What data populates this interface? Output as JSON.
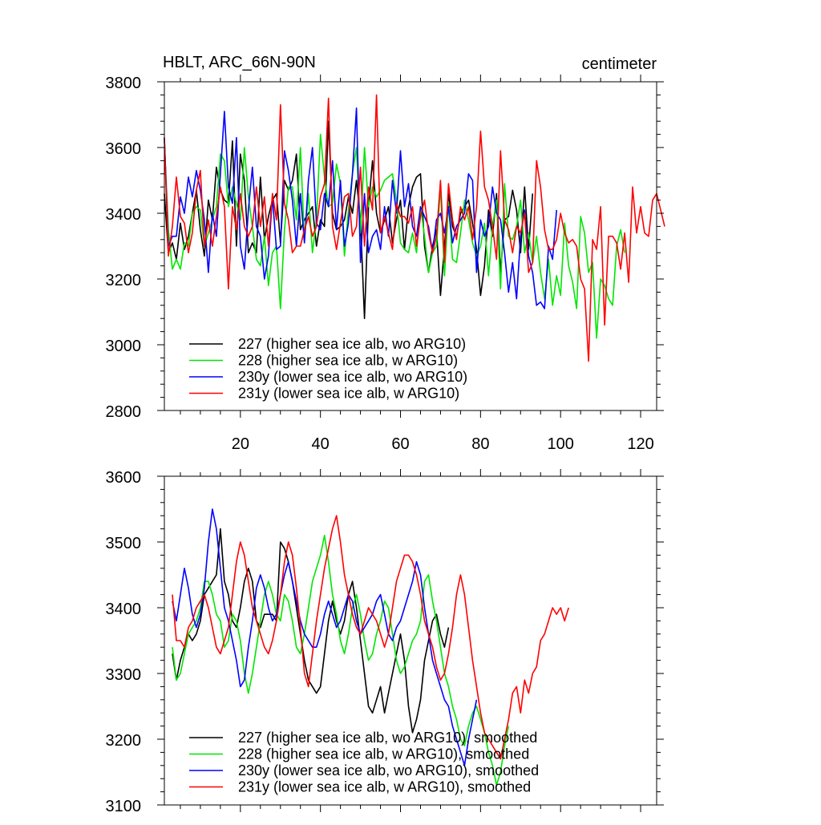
{
  "chart_data": [
    {
      "type": "line",
      "title_left": "HBLT, ARC_66N-90N",
      "title_right": "centimeter",
      "xlim": [
        1,
        124
      ],
      "ylim": [
        2800,
        3800
      ],
      "xticks": [
        20,
        40,
        60,
        80,
        100,
        120
      ],
      "yticks": [
        2800,
        3000,
        3200,
        3400,
        3600,
        3800
      ],
      "xtick_labels": [
        "20",
        "40",
        "60",
        "80",
        "100",
        "120"
      ],
      "ytick_labels": [
        "2800",
        "3000",
        "3200",
        "3400",
        "3600",
        "3800"
      ],
      "legend": [
        "227 (higher sea ice alb, wo ARG10)",
        "228 (higher sea ice alb, w ARG10)",
        "230y (lower sea ice alb, wo ARG10)",
        "231y (lower sea ice alb, w ARG10)"
      ],
      "series": [
        {
          "name": "227 (higher sea ice alb, wo ARG10)",
          "color": "#000000",
          "x_start": 1,
          "values": [
            3460,
            3280,
            3310,
            3260,
            3370,
            3290,
            3330,
            3400,
            3470,
            3350,
            3270,
            3440,
            3380,
            3540,
            3470,
            3440,
            3430,
            3620,
            3300,
            3580,
            3500,
            3280,
            3310,
            3280,
            3510,
            3320,
            3390,
            3440,
            3460,
            3310,
            3500,
            3470,
            3500,
            3580,
            3350,
            3380,
            3400,
            3420,
            3300,
            3380,
            3360,
            3680,
            3400,
            3350,
            3360,
            3380,
            3450,
            3400,
            3500,
            3380,
            3080,
            3420,
            3560,
            3400,
            3340,
            3380,
            3420,
            3310,
            3380,
            3440,
            3290,
            3420,
            3480,
            3510,
            3520,
            3300,
            3220,
            3300,
            3350,
            3150,
            3300,
            3460,
            3360,
            3330,
            3400,
            3420,
            3440,
            3370,
            3290,
            3150,
            3240,
            3410,
            3330,
            3460,
            3220,
            3380,
            3390,
            3470,
            3410,
            3280,
            3480,
            3290,
            3460
          ]
        },
        {
          "name": "228 (higher sea ice alb, w ARG10)",
          "color": "#00e600",
          "x_start": 1,
          "values": [
            3620,
            3350,
            3230,
            3260,
            3230,
            3310,
            3300,
            3400,
            3420,
            3410,
            3300,
            3340,
            3380,
            3420,
            3580,
            3560,
            3420,
            3480,
            3430,
            3380,
            3600,
            3450,
            3360,
            3260,
            3240,
            3330,
            3180,
            3280,
            3300,
            3110,
            3350,
            3480,
            3480,
            3380,
            3600,
            3320,
            3460,
            3280,
            3380,
            3640,
            3510,
            3420,
            3430,
            3550,
            3490,
            3270,
            3410,
            3520,
            3600,
            3340,
            3600,
            3420,
            3480,
            3450,
            3470,
            3500,
            3510,
            3520,
            3440,
            3310,
            3290,
            3280,
            3340,
            3280,
            3420,
            3330,
            3220,
            3280,
            3300,
            3480,
            3210,
            3430,
            3260,
            3250,
            3340,
            3440,
            3380,
            3310,
            3270,
            3300,
            3370,
            3210,
            3360,
            3440,
            3170,
            3490,
            3330,
            3320,
            3360,
            3440,
            3280,
            3340,
            3250,
            3330,
            3220,
            3140,
            3260,
            3120,
            3210,
            3150,
            3370,
            3240,
            3190,
            3110,
            3390,
            3340,
            3220,
            3250,
            3020,
            3200,
            3180,
            3140,
            3120,
            3300,
            3350,
            3280
          ]
        },
        {
          "name": "230y (lower sea ice alb, wo ARG10)",
          "color": "#0000ff",
          "x_start": 1,
          "values": [
            3630,
            3300,
            3330,
            3330,
            3450,
            3400,
            3510,
            3450,
            3530,
            3470,
            3380,
            3220,
            3400,
            3330,
            3520,
            3710,
            3480,
            3430,
            3630,
            3300,
            3230,
            3410,
            3540,
            3360,
            3330,
            3200,
            3270,
            3450,
            3290,
            3300,
            3590,
            3530,
            3440,
            3300,
            3460,
            3310,
            3500,
            3600,
            3370,
            3350,
            3460,
            3420,
            3560,
            3350,
            3500,
            3300,
            3370,
            3520,
            3720,
            3250,
            3460,
            3280,
            3330,
            3350,
            3290,
            3420,
            3330,
            3500,
            3400,
            3590,
            3420,
            3490,
            3360,
            3330,
            3420,
            3390,
            3360,
            3280,
            3380,
            3400,
            3340,
            3420,
            3310,
            3360,
            3380,
            3400,
            3520,
            3500,
            3220,
            3380,
            3330,
            3360,
            3480,
            3400,
            3380,
            3280,
            3160,
            3250,
            3140,
            3330,
            3410,
            3270,
            3220,
            3120,
            3130,
            3110,
            3300,
            3260,
            3410
          ]
        },
        {
          "name": "231y (lower sea ice alb, w ARG10)",
          "color": "#ff0000",
          "x_start": 1,
          "values": [
            3630,
            3270,
            3360,
            3510,
            3390,
            3370,
            3280,
            3340,
            3470,
            3530,
            3300,
            3380,
            3300,
            3390,
            3480,
            3420,
            3170,
            3420,
            3350,
            3460,
            3360,
            3330,
            3360,
            3480,
            3360,
            3450,
            3300,
            3460,
            3380,
            3730,
            3430,
            3380,
            3280,
            3300,
            3300,
            3350,
            3390,
            3330,
            3360,
            3450,
            3490,
            3750,
            3360,
            3290,
            3370,
            3450,
            3460,
            3330,
            3360,
            3540,
            3300,
            3480,
            3410,
            3760,
            3340,
            3390,
            3340,
            3290,
            3430,
            3390,
            3390,
            3370,
            3420,
            3300,
            3390,
            3440,
            3340,
            3280,
            3330,
            3500,
            3250,
            3490,
            3380,
            3320,
            3420,
            3380,
            3420,
            3320,
            3420,
            3650,
            3480,
            3440,
            3360,
            3260,
            3590,
            3380,
            3350,
            3280,
            3360,
            3340,
            3400,
            3220,
            3250,
            3560,
            3480,
            3350,
            3290,
            3290,
            3320,
            3400,
            3340,
            3310,
            3320,
            3300,
            3200,
            3170,
            2950,
            3320,
            3290,
            3420,
            3060,
            3330,
            3330,
            3310,
            3230,
            3340,
            3190,
            3480,
            3340,
            3420,
            3340,
            3330,
            3440,
            3460,
            3410,
            3360
          ]
        }
      ]
    },
    {
      "type": "line",
      "xlim": [
        1,
        124
      ],
      "ylim": [
        3100,
        3600
      ],
      "xticks": [
        20,
        40,
        60,
        80,
        100,
        120
      ],
      "yticks": [
        3100,
        3200,
        3300,
        3400,
        3500,
        3600
      ],
      "ytick_labels": [
        "3100",
        "3200",
        "3300",
        "3400",
        "3500",
        "3600"
      ],
      "legend": [
        "227 (higher sea ice alb, wo ARG10), smoothed",
        "228 (higher sea ice alb, w ARG10), smoothed",
        "230y (lower sea ice alb, wo ARG10), smoothed",
        "231y (lower sea ice alb, w ARG10), smoothed"
      ],
      "series": [
        {
          "name": "227 (higher sea ice alb, wo ARG10), smoothed",
          "color": "#000000",
          "x_start": 3,
          "values": [
            3330,
            3290,
            3320,
            3340,
            3360,
            3350,
            3360,
            3380,
            3420,
            3430,
            3440,
            3450,
            3520,
            3440,
            3420,
            3380,
            3370,
            3400,
            3440,
            3460,
            3440,
            3380,
            3370,
            3390,
            3390,
            3390,
            3380,
            3500,
            3490,
            3470,
            3440,
            3400,
            3360,
            3320,
            3290,
            3280,
            3270,
            3280,
            3330,
            3380,
            3410,
            3380,
            3360,
            3380,
            3420,
            3440,
            3400,
            3350,
            3300,
            3250,
            3240,
            3260,
            3280,
            3240,
            3270,
            3300,
            3330,
            3360,
            3320,
            3250,
            3210,
            3230,
            3260,
            3320,
            3350,
            3380,
            3390,
            3360,
            3340,
            3370
          ]
        },
        {
          "name": "228 (higher sea ice alb, w ARG10), smoothed",
          "color": "#00e600",
          "x_start": 3,
          "values": [
            3340,
            3290,
            3300,
            3330,
            3360,
            3370,
            3380,
            3400,
            3440,
            3440,
            3420,
            3390,
            3380,
            3340,
            3350,
            3390,
            3380,
            3350,
            3300,
            3270,
            3300,
            3340,
            3380,
            3420,
            3440,
            3420,
            3390,
            3380,
            3420,
            3410,
            3380,
            3340,
            3330,
            3360,
            3400,
            3440,
            3460,
            3480,
            3510,
            3470,
            3420,
            3390,
            3350,
            3330,
            3360,
            3400,
            3420,
            3390,
            3350,
            3320,
            3330,
            3360,
            3380,
            3410,
            3400,
            3360,
            3320,
            3300,
            3310,
            3330,
            3350,
            3360,
            3380,
            3440,
            3450,
            3410,
            3380,
            3340,
            3300,
            3280,
            3250,
            3230,
            3200,
            3190,
            3220,
            3240,
            3250,
            3230,
            3210,
            3180,
            3160,
            3130,
            3150,
            3190,
            3220
          ]
        },
        {
          "name": "230y (lower sea ice alb, wo ARG10), smoothed",
          "color": "#0000ff",
          "x_start": 3,
          "values": [
            3410,
            3380,
            3420,
            3460,
            3430,
            3390,
            3370,
            3390,
            3430,
            3500,
            3550,
            3520,
            3460,
            3400,
            3380,
            3350,
            3320,
            3280,
            3290,
            3340,
            3380,
            3430,
            3450,
            3430,
            3400,
            3380,
            3390,
            3420,
            3450,
            3470,
            3440,
            3410,
            3380,
            3360,
            3350,
            3340,
            3340,
            3360,
            3390,
            3410,
            3390,
            3370,
            3380,
            3400,
            3420,
            3410,
            3380,
            3360,
            3370,
            3380,
            3390,
            3410,
            3420,
            3390,
            3360,
            3350,
            3370,
            3380,
            3400,
            3420,
            3440,
            3470,
            3450,
            3400,
            3360,
            3320,
            3300,
            3280,
            3260,
            3250,
            3220,
            3200,
            3180,
            3160,
            3200,
            3230,
            3260
          ]
        },
        {
          "name": "231y (lower sea ice alb, w ARG10), smoothed",
          "color": "#ff0000",
          "x_start": 3,
          "values": [
            3420,
            3350,
            3350,
            3340,
            3370,
            3380,
            3400,
            3410,
            3420,
            3400,
            3370,
            3340,
            3330,
            3350,
            3370,
            3420,
            3470,
            3500,
            3480,
            3440,
            3400,
            3380,
            3360,
            3340,
            3330,
            3350,
            3380,
            3420,
            3470,
            3500,
            3480,
            3430,
            3370,
            3300,
            3280,
            3330,
            3380,
            3420,
            3460,
            3490,
            3520,
            3540,
            3500,
            3450,
            3420,
            3390,
            3370,
            3360,
            3380,
            3400,
            3390,
            3380,
            3360,
            3340,
            3360,
            3400,
            3440,
            3460,
            3480,
            3480,
            3470,
            3450,
            3420,
            3380,
            3360,
            3340,
            3310,
            3290,
            3300,
            3330,
            3370,
            3420,
            3450,
            3420,
            3370,
            3320,
            3280,
            3240,
            3210,
            3200,
            3190,
            3180,
            3170,
            3200,
            3230,
            3270,
            3280,
            3240,
            3290,
            3270,
            3300,
            3310,
            3350,
            3360,
            3380,
            3400,
            3390,
            3400,
            3380,
            3400
          ]
        }
      ]
    }
  ]
}
